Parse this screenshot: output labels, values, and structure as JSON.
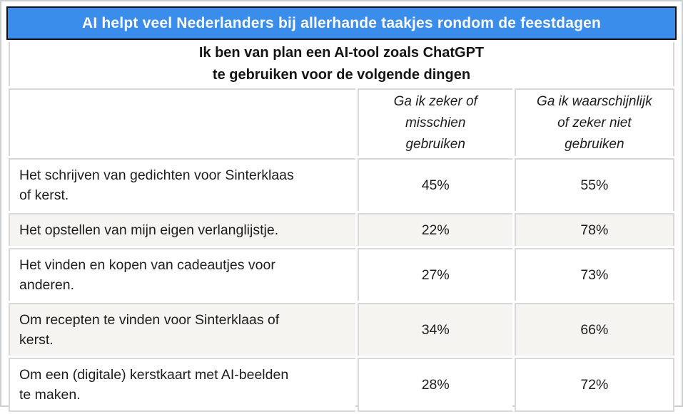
{
  "title_bar": {
    "text": "AI helpt veel Nederlanders bij allerhande taakjes rondom de feestdagen",
    "bg_color": "#3a8dea",
    "border_color": "#10101a",
    "text_color": "#ffffff"
  },
  "subtitle": {
    "text": "Ik ben van plan een AI-tool zoals ChatGPT\nte gebruiken voor de volgende dingen"
  },
  "table": {
    "grid_color": "#d8d8d8",
    "zebra_color": "#f5f4f1",
    "columns": [
      {
        "label": "Ga ik zeker of\nmisschien\ngebruiken"
      },
      {
        "label": "Ga ik waarschijnlijk\nof zeker niet\ngebruiken"
      }
    ],
    "rows": [
      {
        "label": "Het schrijven van gedichten voor Sinterklaas\nof kerst.",
        "value1": "45%",
        "value2": "55%"
      },
      {
        "label": "Het opstellen van mijn eigen verlanglijstje.",
        "value1": "22%",
        "value2": "78%"
      },
      {
        "label": "Het vinden en kopen van cadeautjes voor\nanderen.",
        "value1": "27%",
        "value2": "73%"
      },
      {
        "label": "Om recepten te vinden voor Sinterklaas of\nkerst.",
        "value1": "34%",
        "value2": "66%"
      },
      {
        "label": "Om een (digitale) kerstkaart met AI-beelden\nte maken.",
        "value1": "28%",
        "value2": "72%"
      }
    ]
  },
  "chart_data": {
    "type": "table",
    "title": "AI helpt veel Nederlanders bij allerhande taakjes rondom de feestdagen",
    "subtitle": "Ik ben van plan een AI-tool zoals ChatGPT te gebruiken voor de volgende dingen",
    "categories": [
      "Het schrijven van gedichten voor Sinterklaas of kerst.",
      "Het opstellen van mijn eigen verlanglijstje.",
      "Het vinden en kopen van cadeautjes voor anderen.",
      "Om recepten te vinden voor Sinterklaas of kerst.",
      "Om een (digitale) kerstkaart met AI-beelden te maken."
    ],
    "series": [
      {
        "name": "Ga ik zeker of misschien gebruiken",
        "unit": "%",
        "values": [
          45,
          22,
          27,
          34,
          28
        ]
      },
      {
        "name": "Ga ik waarschijnlijk of zeker niet gebruiken",
        "unit": "%",
        "values": [
          55,
          78,
          73,
          66,
          72
        ]
      }
    ]
  }
}
